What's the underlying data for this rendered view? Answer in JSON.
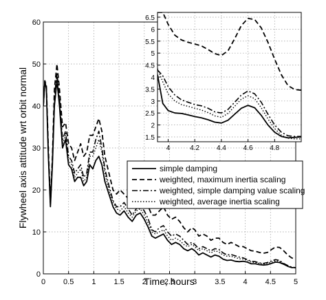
{
  "chart_data": [
    {
      "type": "line",
      "title": "",
      "xlabel": "Time, hours",
      "ylabel": "Flywheel axis attitude wrt orbit normal",
      "xlim": [
        0,
        5
      ],
      "ylim": [
        0,
        60
      ],
      "xticks": [
        0,
        0.5,
        1,
        1.5,
        2,
        2.5,
        3,
        3.5,
        4,
        4.5,
        5
      ],
      "xtick_labels": [
        "0",
        "0.5",
        "1",
        "1.5",
        "2",
        "2.5",
        "3",
        "3.5",
        "4",
        "4.5",
        "5"
      ],
      "yticks": [
        0,
        10,
        20,
        30,
        40,
        50,
        60
      ],
      "ytick_labels": [
        "0",
        "10",
        "20",
        "30",
        "40",
        "50",
        "60"
      ],
      "grid": true,
      "legend_position": "center-right",
      "series": [
        {
          "name": "simple damping",
          "style": "solid",
          "color": "#000000",
          "x": [
            0,
            0.03,
            0.06,
            0.1,
            0.14,
            0.18,
            0.22,
            0.27,
            0.32,
            0.38,
            0.44,
            0.5,
            0.56,
            0.62,
            0.68,
            0.74,
            0.8,
            0.86,
            0.92,
            0.98,
            1.04,
            1.1,
            1.16,
            1.22,
            1.3,
            1.38,
            1.45,
            1.52,
            1.6,
            1.68,
            1.76,
            1.84,
            1.92,
            2.0,
            2.08,
            2.15,
            2.22,
            2.3,
            2.38,
            2.46,
            2.54,
            2.62,
            2.7,
            2.78,
            2.86,
            2.94,
            3.0,
            3.08,
            3.16,
            3.24,
            3.32,
            3.4,
            3.48,
            3.56,
            3.64,
            3.72,
            3.8,
            3.88,
            3.96,
            4.04,
            4.12,
            4.2,
            4.28,
            4.36,
            4.44,
            4.52,
            4.6,
            4.68,
            4.76,
            4.84,
            4.92,
            5.0
          ],
          "y": [
            40,
            46,
            44,
            28,
            16,
            26,
            40,
            46,
            40,
            30,
            32,
            26,
            25,
            22,
            23,
            23,
            21,
            22,
            26,
            25,
            27,
            28,
            26,
            22,
            19,
            16,
            14.5,
            14,
            15,
            13.5,
            12.5,
            14,
            14.5,
            13,
            11,
            9,
            8.5,
            9,
            9.5,
            8,
            7,
            7.5,
            7,
            6,
            5.5,
            6,
            5.5,
            4.5,
            5,
            4.5,
            4,
            4.5,
            4.2,
            3.5,
            3.2,
            3.3,
            3.0,
            2.9,
            3.0,
            2.8,
            2.4,
            2.4,
            2.2,
            2.1,
            2.2,
            2.5,
            2.8,
            2.7,
            2.3,
            1.8,
            1.5,
            1.5
          ]
        },
        {
          "name": "weighted, maximum inertia scaling",
          "style": "dashed",
          "color": "#000000",
          "x": [
            0,
            0.03,
            0.06,
            0.1,
            0.14,
            0.18,
            0.22,
            0.27,
            0.32,
            0.38,
            0.44,
            0.5,
            0.56,
            0.62,
            0.68,
            0.74,
            0.8,
            0.86,
            0.92,
            0.98,
            1.04,
            1.1,
            1.16,
            1.22,
            1.3,
            1.38,
            1.45,
            1.52,
            1.6,
            1.68,
            1.76,
            1.84,
            1.92,
            2.0,
            2.08,
            2.15,
            2.22,
            2.3,
            2.38,
            2.46,
            2.54,
            2.62,
            2.7,
            2.78,
            2.86,
            2.94,
            3.0,
            3.08,
            3.16,
            3.24,
            3.32,
            3.4,
            3.48,
            3.56,
            3.64,
            3.72,
            3.8,
            3.88,
            3.96,
            4.04,
            4.12,
            4.2,
            4.28,
            4.36,
            4.44,
            4.52,
            4.6,
            4.68,
            4.76,
            4.84,
            4.92,
            5.0
          ],
          "y": [
            40,
            46,
            45,
            30,
            17,
            28,
            44,
            50,
            44,
            35,
            36,
            31,
            30,
            27,
            29,
            31,
            28,
            29,
            33,
            33,
            35,
            37,
            34,
            28,
            24,
            20,
            19,
            20,
            19,
            18,
            17,
            18.5,
            19,
            17.5,
            16,
            14,
            14,
            15,
            16,
            14,
            13,
            13.5,
            12.5,
            11,
            10,
            11,
            10.5,
            9,
            9.5,
            9,
            8,
            8.5,
            8.5,
            7.5,
            7,
            7.5,
            7,
            6.5,
            6.5,
            6,
            5.5,
            5.4,
            5.1,
            4.9,
            5.1,
            5.8,
            6.4,
            6.3,
            5.5,
            4.5,
            3.8,
            3.5
          ]
        },
        {
          "name": "weighted, simple damping value scaling",
          "style": "dashdot",
          "color": "#000000",
          "x": [
            0,
            0.03,
            0.06,
            0.1,
            0.14,
            0.18,
            0.22,
            0.27,
            0.32,
            0.38,
            0.44,
            0.5,
            0.56,
            0.62,
            0.68,
            0.74,
            0.8,
            0.86,
            0.92,
            0.98,
            1.04,
            1.1,
            1.16,
            1.22,
            1.3,
            1.38,
            1.45,
            1.52,
            1.6,
            1.68,
            1.76,
            1.84,
            1.92,
            2.0,
            2.08,
            2.15,
            2.22,
            2.3,
            2.38,
            2.46,
            2.54,
            2.62,
            2.7,
            2.78,
            2.86,
            2.94,
            3.0,
            3.08,
            3.16,
            3.24,
            3.32,
            3.4,
            3.48,
            3.56,
            3.64,
            3.72,
            3.8,
            3.88,
            3.96,
            4.04,
            4.12,
            4.2,
            4.28,
            4.36,
            4.44,
            4.52,
            4.6,
            4.68,
            4.76,
            4.84,
            4.92,
            5.0
          ],
          "y": [
            40,
            46,
            44,
            29,
            16.5,
            27,
            42,
            48,
            42,
            32,
            34,
            28,
            27,
            24,
            25,
            26,
            23,
            24,
            29,
            29,
            32,
            34,
            30,
            25,
            21,
            17.5,
            16,
            16,
            17,
            15.5,
            14,
            15.5,
            16,
            15,
            13,
            10.5,
            10,
            11,
            11.5,
            10,
            9,
            9.5,
            9,
            8,
            7,
            7.5,
            7,
            6,
            6.5,
            6,
            5.5,
            6,
            5.8,
            5,
            4.5,
            4.6,
            4.3,
            4.0,
            3.8,
            3.4,
            3.0,
            2.9,
            2.6,
            2.5,
            2.7,
            3.1,
            3.4,
            3.2,
            2.5,
            2.0,
            1.6,
            1.5
          ]
        },
        {
          "name": "weighted, average inertia scaling",
          "style": "dotted",
          "color": "#000000",
          "x": [
            0,
            0.03,
            0.06,
            0.1,
            0.14,
            0.18,
            0.22,
            0.27,
            0.32,
            0.38,
            0.44,
            0.5,
            0.56,
            0.62,
            0.68,
            0.74,
            0.8,
            0.86,
            0.92,
            0.98,
            1.04,
            1.1,
            1.16,
            1.22,
            1.3,
            1.38,
            1.45,
            1.52,
            1.6,
            1.68,
            1.76,
            1.84,
            1.92,
            2.0,
            2.08,
            2.15,
            2.22,
            2.3,
            2.38,
            2.46,
            2.54,
            2.62,
            2.7,
            2.78,
            2.86,
            2.94,
            3.0,
            3.08,
            3.16,
            3.24,
            3.32,
            3.4,
            3.48,
            3.56,
            3.64,
            3.72,
            3.8,
            3.88,
            3.96,
            4.04,
            4.12,
            4.2,
            4.28,
            4.36,
            4.44,
            4.52,
            4.6,
            4.68,
            4.76,
            4.84,
            4.92,
            5.0
          ],
          "y": [
            40,
            46,
            44,
            28.5,
            16.3,
            26.5,
            41,
            47,
            41,
            31,
            33,
            27,
            26,
            23,
            24,
            25,
            22,
            23,
            28,
            28,
            30,
            32,
            29,
            24,
            20,
            17,
            15.5,
            15,
            16,
            14.5,
            13.5,
            15,
            15.5,
            14,
            12,
            10,
            9.5,
            10,
            10.5,
            9,
            8,
            8.5,
            8,
            7,
            6.5,
            7,
            6.5,
            5.5,
            6,
            5.5,
            5,
            5.5,
            5.2,
            4.5,
            4.2,
            4.2,
            3.9,
            3.6,
            3.5,
            3.2,
            2.8,
            2.7,
            2.5,
            2.4,
            2.5,
            2.8,
            3.1,
            3.0,
            2.4,
            1.8,
            1.5,
            1.4
          ]
        }
      ]
    },
    {
      "type": "line",
      "title": "",
      "role": "inset (zoom)",
      "xlim": [
        3.92,
        5.0
      ],
      "ylim": [
        1.3,
        6.7
      ],
      "xticks": [
        4,
        4.2,
        4.4,
        4.6,
        4.8
      ],
      "xtick_labels": [
        "4",
        "4.2",
        "4.4",
        "4.6",
        "4.8"
      ],
      "yticks": [
        1.5,
        2,
        2.5,
        3,
        3.5,
        4,
        4.5,
        5,
        5.5,
        6,
        6.5
      ],
      "ytick_labels": [
        "1.5",
        "2",
        "2.5",
        "3",
        "3.5",
        "4",
        "4.5",
        "5",
        "5.5",
        "6",
        "6.5"
      ],
      "grid": true,
      "series": [
        {
          "style": "solid",
          "x": [
            3.92,
            3.96,
            4.0,
            4.05,
            4.1,
            4.15,
            4.2,
            4.25,
            4.3,
            4.35,
            4.4,
            4.45,
            4.5,
            4.55,
            4.6,
            4.65,
            4.7,
            4.75,
            4.8,
            4.85,
            4.9,
            4.95,
            5.0
          ],
          "y": [
            4.1,
            2.9,
            2.6,
            2.5,
            2.48,
            2.42,
            2.35,
            2.3,
            2.22,
            2.12,
            2.08,
            2.2,
            2.45,
            2.7,
            2.82,
            2.72,
            2.4,
            2.0,
            1.7,
            1.52,
            1.46,
            1.48,
            1.5
          ]
        },
        {
          "style": "dashed",
          "x": [
            3.92,
            3.96,
            4.0,
            4.05,
            4.1,
            4.15,
            4.2,
            4.25,
            4.3,
            4.35,
            4.4,
            4.45,
            4.5,
            4.55,
            4.6,
            4.65,
            4.7,
            4.75,
            4.8,
            4.85,
            4.9,
            4.95,
            5.0
          ],
          "y": [
            6.7,
            6.7,
            6.2,
            5.75,
            5.55,
            5.45,
            5.38,
            5.3,
            5.15,
            4.98,
            4.9,
            5.1,
            5.6,
            6.15,
            6.45,
            6.4,
            6.05,
            5.45,
            4.75,
            4.1,
            3.65,
            3.48,
            3.45
          ]
        },
        {
          "style": "dashdot",
          "x": [
            3.92,
            3.96,
            4.0,
            4.05,
            4.1,
            4.15,
            4.2,
            4.25,
            4.3,
            4.35,
            4.4,
            4.45,
            4.5,
            4.55,
            4.6,
            4.65,
            4.7,
            4.75,
            4.8,
            4.85,
            4.9,
            4.95,
            5.0
          ],
          "y": [
            4.3,
            4.05,
            3.6,
            3.25,
            3.05,
            2.95,
            2.85,
            2.8,
            2.7,
            2.55,
            2.5,
            2.65,
            2.95,
            3.25,
            3.42,
            3.3,
            2.95,
            2.45,
            2.0,
            1.7,
            1.55,
            1.52,
            1.52
          ]
        },
        {
          "style": "dotted",
          "x": [
            3.92,
            3.96,
            4.0,
            4.05,
            4.1,
            4.15,
            4.2,
            4.25,
            4.3,
            4.35,
            4.4,
            4.45,
            4.5,
            4.55,
            4.6,
            4.65,
            4.7,
            4.75,
            4.8,
            4.85,
            4.9,
            4.95,
            5.0
          ],
          "y": [
            4.35,
            3.8,
            3.3,
            3.0,
            2.85,
            2.78,
            2.7,
            2.62,
            2.52,
            2.38,
            2.32,
            2.48,
            2.78,
            3.08,
            3.22,
            3.1,
            2.72,
            2.25,
            1.85,
            1.58,
            1.45,
            1.42,
            1.42
          ]
        }
      ]
    }
  ],
  "styles": {
    "line_color": "#000000",
    "grid_color": "#9a9a9a",
    "background": "#ffffff"
  }
}
